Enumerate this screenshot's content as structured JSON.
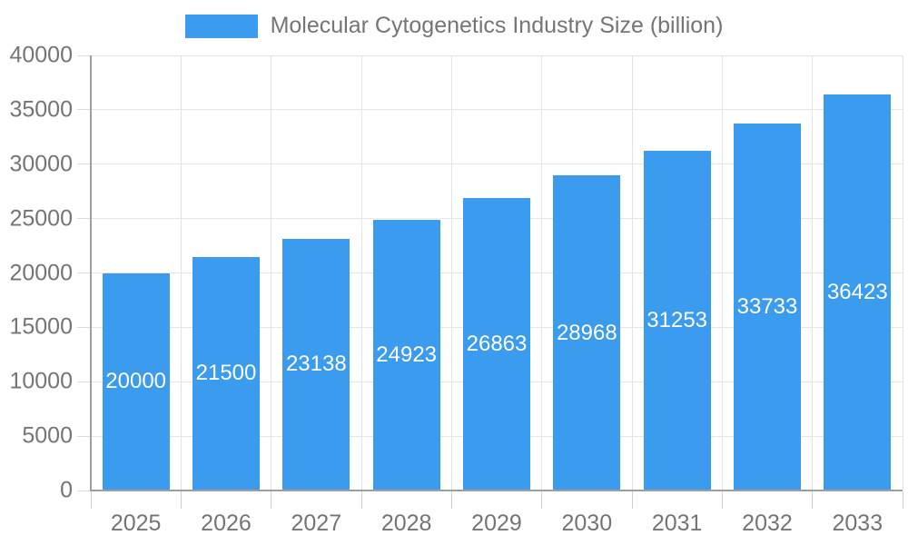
{
  "legend": {
    "label": "Molecular Cytogenetics Industry Size (billion)",
    "swatch_color": "#3A9BEF"
  },
  "chart_data": {
    "type": "bar",
    "title": "Molecular Cytogenetics Industry Size (billion)",
    "categories": [
      "2025",
      "2026",
      "2027",
      "2028",
      "2029",
      "2030",
      "2031",
      "2032",
      "2033"
    ],
    "values": [
      20000,
      21500,
      23138,
      24923,
      26863,
      28968,
      31253,
      33733,
      36423
    ],
    "xlabel": "",
    "ylabel": "",
    "ylim": [
      0,
      40000
    ],
    "ytick_step": 5000,
    "yticks": [
      0,
      5000,
      10000,
      15000,
      20000,
      25000,
      30000,
      35000,
      40000
    ],
    "bar_color": "#3A9BEF",
    "bar_value_label_color": "#ffffff",
    "grid": true,
    "legend_position": "top-center",
    "colors": {
      "axis_line": "#9E9E9E",
      "gridline": "#E6E6E6",
      "tick": "#D6D6D6",
      "label_text": "#757575"
    }
  }
}
